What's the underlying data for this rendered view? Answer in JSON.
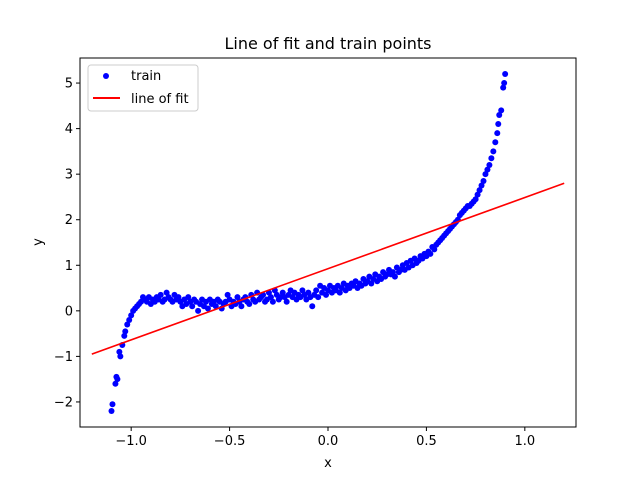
{
  "chart_data": {
    "type": "scatter",
    "title": "Line of fit and train points",
    "xlabel": "x",
    "ylabel": "y",
    "xlim": [
      -1.26,
      1.26
    ],
    "ylim": [
      -2.55,
      5.55
    ],
    "xticks": [
      -1.0,
      -0.5,
      0.0,
      0.5,
      1.0
    ],
    "xtick_labels": [
      "−1.0",
      "−0.5",
      "0.0",
      "0.5",
      "1.0"
    ],
    "yticks": [
      -2,
      -1,
      0,
      1,
      2,
      3,
      4,
      5
    ],
    "ytick_labels": [
      "−2",
      "−1",
      "0",
      "1",
      "2",
      "3",
      "4",
      "5"
    ],
    "grid": false,
    "legend_position": "top-left",
    "series": [
      {
        "name": "train",
        "kind": "scatter",
        "color": "#0000ff",
        "points": [
          [
            -1.1,
            -2.2
          ],
          [
            -1.095,
            -2.05
          ],
          [
            -1.08,
            -1.6
          ],
          [
            -1.075,
            -1.45
          ],
          [
            -1.07,
            -1.5
          ],
          [
            -1.06,
            -0.9
          ],
          [
            -1.055,
            -1.0
          ],
          [
            -1.045,
            -0.75
          ],
          [
            -1.035,
            -0.55
          ],
          [
            -1.03,
            -0.45
          ],
          [
            -1.02,
            -0.3
          ],
          [
            -1.01,
            -0.2
          ],
          [
            -1.0,
            -0.1
          ],
          [
            -0.99,
            0.0
          ],
          [
            -0.98,
            0.05
          ],
          [
            -0.97,
            0.1
          ],
          [
            -0.96,
            0.15
          ],
          [
            -0.95,
            0.2
          ],
          [
            -0.94,
            0.3
          ],
          [
            -0.93,
            0.25
          ],
          [
            -0.92,
            0.2
          ],
          [
            -0.91,
            0.3
          ],
          [
            -0.9,
            0.15
          ],
          [
            -0.89,
            0.25
          ],
          [
            -0.88,
            0.2
          ],
          [
            -0.87,
            0.3
          ],
          [
            -0.86,
            0.25
          ],
          [
            -0.85,
            0.35
          ],
          [
            -0.84,
            0.2
          ],
          [
            -0.83,
            0.25
          ],
          [
            -0.82,
            0.4
          ],
          [
            -0.81,
            0.3
          ],
          [
            -0.8,
            0.25
          ],
          [
            -0.79,
            0.2
          ],
          [
            -0.78,
            0.35
          ],
          [
            -0.77,
            0.25
          ],
          [
            -0.76,
            0.3
          ],
          [
            -0.75,
            0.2
          ],
          [
            -0.74,
            0.1
          ],
          [
            -0.73,
            0.25
          ],
          [
            -0.72,
            0.15
          ],
          [
            -0.71,
            0.3
          ],
          [
            -0.7,
            0.2
          ],
          [
            -0.69,
            0.1
          ],
          [
            -0.68,
            0.25
          ],
          [
            -0.67,
            0.2
          ],
          [
            -0.66,
            0.0
          ],
          [
            -0.65,
            0.15
          ],
          [
            -0.64,
            0.25
          ],
          [
            -0.63,
            0.1
          ],
          [
            -0.62,
            0.2
          ],
          [
            -0.61,
            0.05
          ],
          [
            -0.6,
            0.25
          ],
          [
            -0.59,
            0.15
          ],
          [
            -0.58,
            0.2
          ],
          [
            -0.57,
            0.1
          ],
          [
            -0.56,
            0.25
          ],
          [
            -0.55,
            0.2
          ],
          [
            -0.54,
            0.05
          ],
          [
            -0.53,
            0.15
          ],
          [
            -0.52,
            0.2
          ],
          [
            -0.51,
            0.35
          ],
          [
            -0.5,
            0.25
          ],
          [
            -0.49,
            0.1
          ],
          [
            -0.48,
            0.2
          ],
          [
            -0.47,
            0.15
          ],
          [
            -0.46,
            0.3
          ],
          [
            -0.45,
            0.2
          ],
          [
            -0.44,
            0.1
          ],
          [
            -0.43,
            0.25
          ],
          [
            -0.42,
            0.3
          ],
          [
            -0.41,
            0.2
          ],
          [
            -0.4,
            0.15
          ],
          [
            -0.39,
            0.35
          ],
          [
            -0.38,
            0.25
          ],
          [
            -0.37,
            0.2
          ],
          [
            -0.36,
            0.4
          ],
          [
            -0.35,
            0.25
          ],
          [
            -0.34,
            0.3
          ],
          [
            -0.33,
            0.35
          ],
          [
            -0.32,
            0.2
          ],
          [
            -0.31,
            0.25
          ],
          [
            -0.3,
            0.4
          ],
          [
            -0.29,
            0.3
          ],
          [
            -0.28,
            0.2
          ],
          [
            -0.27,
            0.45
          ],
          [
            -0.26,
            0.35
          ],
          [
            -0.25,
            0.25
          ],
          [
            -0.24,
            0.3
          ],
          [
            -0.23,
            0.4
          ],
          [
            -0.22,
            0.3
          ],
          [
            -0.21,
            0.2
          ],
          [
            -0.2,
            0.35
          ],
          [
            -0.19,
            0.45
          ],
          [
            -0.18,
            0.3
          ],
          [
            -0.17,
            0.4
          ],
          [
            -0.16,
            0.25
          ],
          [
            -0.15,
            0.35
          ],
          [
            -0.14,
            0.3
          ],
          [
            -0.13,
            0.45
          ],
          [
            -0.12,
            0.35
          ],
          [
            -0.11,
            0.25
          ],
          [
            -0.1,
            0.4
          ],
          [
            -0.09,
            0.3
          ],
          [
            -0.08,
            0.1
          ],
          [
            -0.07,
            0.35
          ],
          [
            -0.06,
            0.45
          ],
          [
            -0.05,
            0.3
          ],
          [
            -0.04,
            0.55
          ],
          [
            -0.03,
            0.4
          ],
          [
            -0.02,
            0.5
          ],
          [
            -0.01,
            0.35
          ],
          [
            0.0,
            0.45
          ],
          [
            0.01,
            0.55
          ],
          [
            0.02,
            0.4
          ],
          [
            0.03,
            0.5
          ],
          [
            0.04,
            0.45
          ],
          [
            0.05,
            0.55
          ],
          [
            0.06,
            0.4
          ],
          [
            0.07,
            0.5
          ],
          [
            0.08,
            0.6
          ],
          [
            0.09,
            0.45
          ],
          [
            0.1,
            0.55
          ],
          [
            0.11,
            0.5
          ],
          [
            0.12,
            0.6
          ],
          [
            0.13,
            0.55
          ],
          [
            0.14,
            0.65
          ],
          [
            0.15,
            0.5
          ],
          [
            0.16,
            0.6
          ],
          [
            0.17,
            0.55
          ],
          [
            0.18,
            0.7
          ],
          [
            0.19,
            0.6
          ],
          [
            0.2,
            0.65
          ],
          [
            0.21,
            0.75
          ],
          [
            0.22,
            0.6
          ],
          [
            0.23,
            0.7
          ],
          [
            0.24,
            0.8
          ],
          [
            0.25,
            0.65
          ],
          [
            0.26,
            0.75
          ],
          [
            0.27,
            0.7
          ],
          [
            0.28,
            0.85
          ],
          [
            0.29,
            0.75
          ],
          [
            0.3,
            0.8
          ],
          [
            0.31,
            0.9
          ],
          [
            0.32,
            0.8
          ],
          [
            0.33,
            0.85
          ],
          [
            0.34,
            0.75
          ],
          [
            0.35,
            0.95
          ],
          [
            0.36,
            0.85
          ],
          [
            0.37,
            0.9
          ],
          [
            0.38,
            1.0
          ],
          [
            0.39,
            0.9
          ],
          [
            0.4,
            1.05
          ],
          [
            0.41,
            0.95
          ],
          [
            0.42,
            1.1
          ],
          [
            0.43,
            1.0
          ],
          [
            0.44,
            1.15
          ],
          [
            0.45,
            1.05
          ],
          [
            0.46,
            1.1
          ],
          [
            0.47,
            1.2
          ],
          [
            0.48,
            1.15
          ],
          [
            0.49,
            1.25
          ],
          [
            0.5,
            1.2
          ],
          [
            0.51,
            1.3
          ],
          [
            0.52,
            1.25
          ],
          [
            0.53,
            1.4
          ],
          [
            0.54,
            1.35
          ],
          [
            0.55,
            1.45
          ],
          [
            0.56,
            1.5
          ],
          [
            0.57,
            1.55
          ],
          [
            0.58,
            1.6
          ],
          [
            0.59,
            1.65
          ],
          [
            0.6,
            1.7
          ],
          [
            0.61,
            1.75
          ],
          [
            0.62,
            1.8
          ],
          [
            0.63,
            1.85
          ],
          [
            0.64,
            1.9
          ],
          [
            0.65,
            1.95
          ],
          [
            0.66,
            2.0
          ],
          [
            0.67,
            2.1
          ],
          [
            0.68,
            2.15
          ],
          [
            0.69,
            2.2
          ],
          [
            0.7,
            2.25
          ],
          [
            0.71,
            2.3
          ],
          [
            0.72,
            2.3
          ],
          [
            0.73,
            2.35
          ],
          [
            0.74,
            2.4
          ],
          [
            0.75,
            2.45
          ],
          [
            0.76,
            2.55
          ],
          [
            0.77,
            2.65
          ],
          [
            0.78,
            2.75
          ],
          [
            0.79,
            2.85
          ],
          [
            0.8,
            3.0
          ],
          [
            0.81,
            3.1
          ],
          [
            0.82,
            3.2
          ],
          [
            0.83,
            3.35
          ],
          [
            0.84,
            3.5
          ],
          [
            0.85,
            3.7
          ],
          [
            0.86,
            3.9
          ],
          [
            0.865,
            4.1
          ],
          [
            0.87,
            4.3
          ],
          [
            0.88,
            4.4
          ],
          [
            0.89,
            4.9
          ],
          [
            0.895,
            5.0
          ],
          [
            0.9,
            5.2
          ]
        ]
      },
      {
        "name": "line of fit",
        "kind": "line",
        "color": "#ff0000",
        "x": [
          -1.2,
          1.2
        ],
        "y": [
          -0.95,
          2.8
        ]
      }
    ]
  }
}
